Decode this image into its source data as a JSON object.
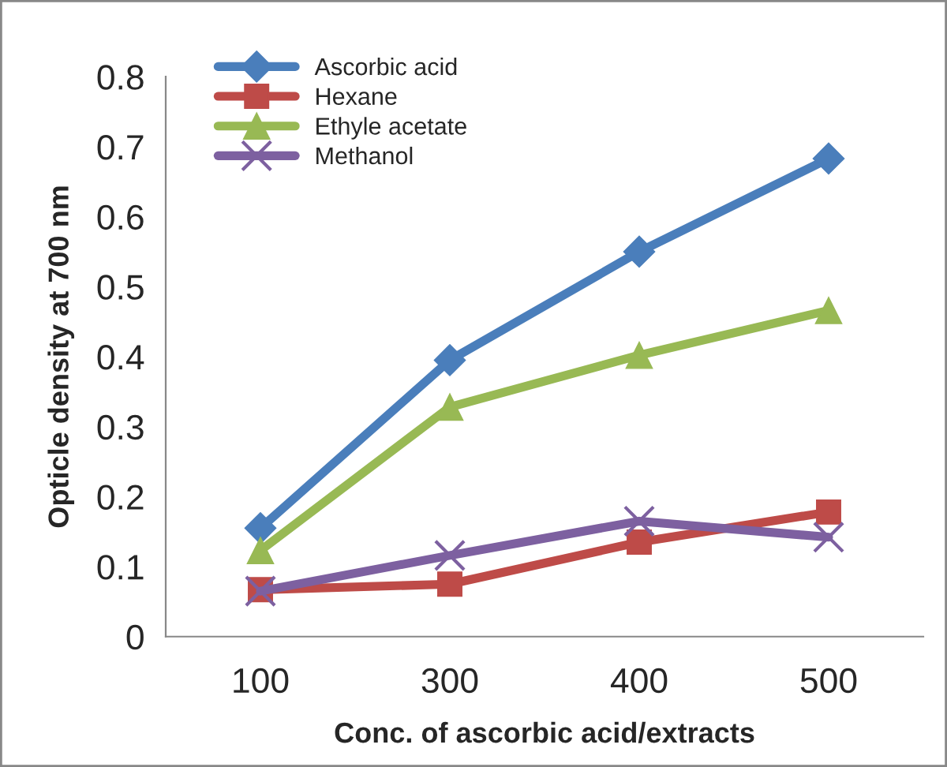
{
  "chart_data": {
    "type": "line",
    "xlabel": "Conc. of ascorbic acid/extracts",
    "ylabel": "Opticle density at 700 nm",
    "categories": [
      "100",
      "300",
      "400",
      "500"
    ],
    "series": [
      {
        "name": "Ascorbic acid",
        "color": "#4a7ebb",
        "marker": "diamond",
        "values": [
          0.155,
          0.395,
          0.55,
          0.683
        ]
      },
      {
        "name": "Hexane",
        "color": "#be4b48",
        "marker": "square",
        "values": [
          0.067,
          0.075,
          0.135,
          0.178
        ]
      },
      {
        "name": "Ethyle acetate",
        "color": "#98b954",
        "marker": "triangle",
        "values": [
          0.123,
          0.328,
          0.402,
          0.466
        ]
      },
      {
        "name": "Methanol",
        "color": "#7d60a0",
        "marker": "cross",
        "values": [
          0.065,
          0.116,
          0.165,
          0.142
        ]
      }
    ],
    "ylim": [
      0,
      0.8
    ],
    "yticks": [
      0,
      0.1,
      0.2,
      0.3,
      0.4,
      0.5,
      0.6,
      0.7,
      0.8
    ],
    "grid": false,
    "legend": "top left",
    "line_style": "solid"
  }
}
